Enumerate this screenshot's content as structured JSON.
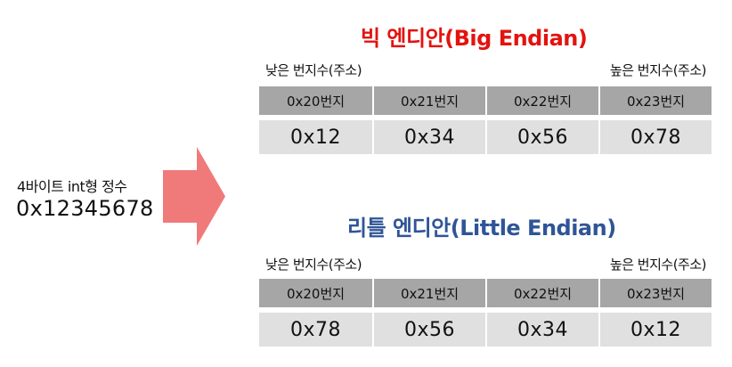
{
  "source": {
    "label": "4바이트 int형 정수",
    "value": "0x12345678"
  },
  "arrow": {
    "color": "#f07a7a",
    "icon": "right-arrow-icon"
  },
  "big_endian": {
    "title": "빅 엔디안(Big Endian)",
    "title_color": "#e3130f",
    "low_address": "낮은 번지수(주소)",
    "high_address": "높은 번지수(주소)",
    "addresses": [
      "0x20번지",
      "0x21번지",
      "0x22번지",
      "0x23번지"
    ],
    "bytes": [
      "0x12",
      "0x34",
      "0x56",
      "0x78"
    ]
  },
  "little_endian": {
    "title": "리틀 엔디안(Little Endian)",
    "title_color": "#2f5597",
    "low_address": "낮은 번지수(주소)",
    "high_address": "높은 번지수(주소)",
    "addresses": [
      "0x20번지",
      "0x21번지",
      "0x22번지",
      "0x23번지"
    ],
    "bytes": [
      "0x78",
      "0x56",
      "0x34",
      "0x12"
    ]
  }
}
